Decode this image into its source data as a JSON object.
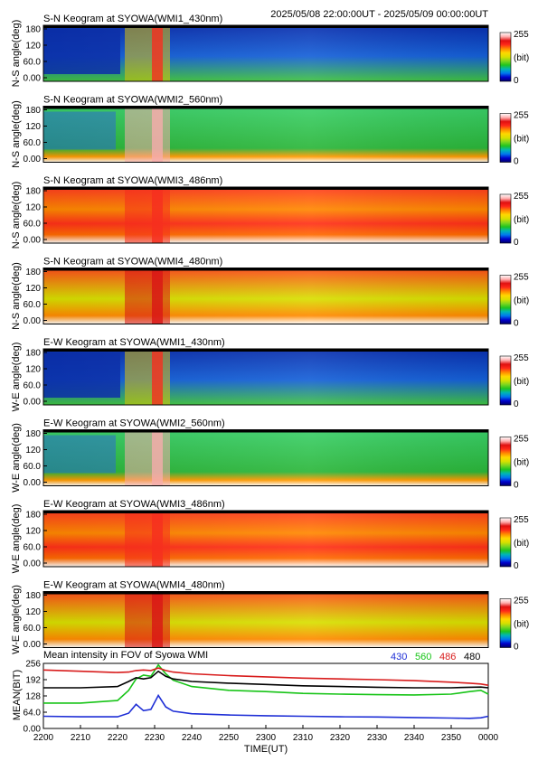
{
  "header": {
    "time_range": "2025/05/08 22:00:00UT - 2025/05/09 00:00:00UT"
  },
  "colorbar": {
    "max": "255",
    "unit": "(bit)",
    "min": "0"
  },
  "panels": [
    {
      "title": "S-N Keogram at SYOWA(WMI1_430nm)",
      "ylabel": "N-S angle(deg)",
      "channel": "430",
      "direction": "S-N"
    },
    {
      "title": "S-N Keogram at SYOWA(WMI2_560nm)",
      "ylabel": "N-S angle(deg)",
      "channel": "560",
      "direction": "S-N"
    },
    {
      "title": "S-N Keogram at SYOWA(WMI3_486nm)",
      "ylabel": "N-S angle(deg)",
      "channel": "486",
      "direction": "S-N"
    },
    {
      "title": "S-N Keogram at SYOWA(WMI4_480nm)",
      "ylabel": "N-S angle(deg)",
      "channel": "480",
      "direction": "S-N"
    },
    {
      "title": "E-W Keogram at SYOWA(WMI1_430nm)",
      "ylabel": "W-E angle(deg)",
      "channel": "430",
      "direction": "E-W"
    },
    {
      "title": "E-W Keogram at SYOWA(WMI2_560nm)",
      "ylabel": "W-E angle(deg)",
      "channel": "560",
      "direction": "E-W"
    },
    {
      "title": "E-W Keogram at SYOWA(WMI3_486nm)",
      "ylabel": "W-E angle(deg)",
      "channel": "486",
      "direction": "E-W"
    },
    {
      "title": "E-W Keogram at SYOWA(WMI4_480nm)",
      "ylabel": "W-E angle(deg)",
      "channel": "480",
      "direction": "E-W"
    }
  ],
  "keogram_yticks": [
    "180",
    "120",
    "60.0",
    "0.00"
  ],
  "chart_data": {
    "type": "line",
    "title": "Mean intensity in FOV of Syowa WMI",
    "xlabel": "TIME(UT)",
    "ylabel": "MEAN(BIT)",
    "xlim": [
      0,
      120
    ],
    "ylim": [
      0,
      256
    ],
    "x_tick_labels": [
      "2200",
      "2210",
      "2220",
      "2230",
      "2240",
      "2250",
      "2300",
      "2310",
      "2320",
      "2330",
      "2340",
      "2350",
      "0000"
    ],
    "y_tick_labels": [
      "256",
      "192",
      "128",
      "64.0",
      "0.00"
    ],
    "y_ticks": [
      256,
      192,
      128,
      64,
      0
    ],
    "x": [
      0,
      10,
      20,
      23,
      25,
      27,
      29,
      31,
      33,
      35,
      40,
      50,
      60,
      70,
      80,
      90,
      100,
      110,
      115,
      118,
      120
    ],
    "series": [
      {
        "name": "430",
        "color": "#1f2fd6",
        "values": [
          48,
          46,
          46,
          60,
          95,
          70,
          75,
          130,
          85,
          68,
          58,
          53,
          50,
          48,
          46,
          45,
          43,
          41,
          40,
          42,
          48
        ]
      },
      {
        "name": "560",
        "color": "#17c417",
        "values": [
          100,
          100,
          110,
          150,
          195,
          210,
          205,
          250,
          215,
          190,
          165,
          150,
          145,
          138,
          135,
          133,
          132,
          135,
          145,
          150,
          135
        ]
      },
      {
        "name": "486",
        "color": "#d81c1c",
        "values": [
          230,
          225,
          220,
          222,
          228,
          230,
          228,
          238,
          228,
          222,
          215,
          208,
          203,
          198,
          195,
          192,
          188,
          182,
          178,
          175,
          170
        ]
      },
      {
        "name": "480",
        "color": "#000000",
        "values": [
          160,
          160,
          165,
          185,
          200,
          195,
          200,
          225,
          205,
          195,
          185,
          178,
          173,
          168,
          165,
          162,
          160,
          160,
          162,
          163,
          160
        ]
      }
    ]
  },
  "colors": {
    "frame": "#000000",
    "colormap": [
      "#000066",
      "#0000cc",
      "#0077ee",
      "#00b6b6",
      "#1fc41f",
      "#7ed61f",
      "#d8e000",
      "#ffd800",
      "#ff8a00",
      "#ff2a1a",
      "#e01010",
      "#ffb0b0",
      "#ffffff"
    ]
  }
}
